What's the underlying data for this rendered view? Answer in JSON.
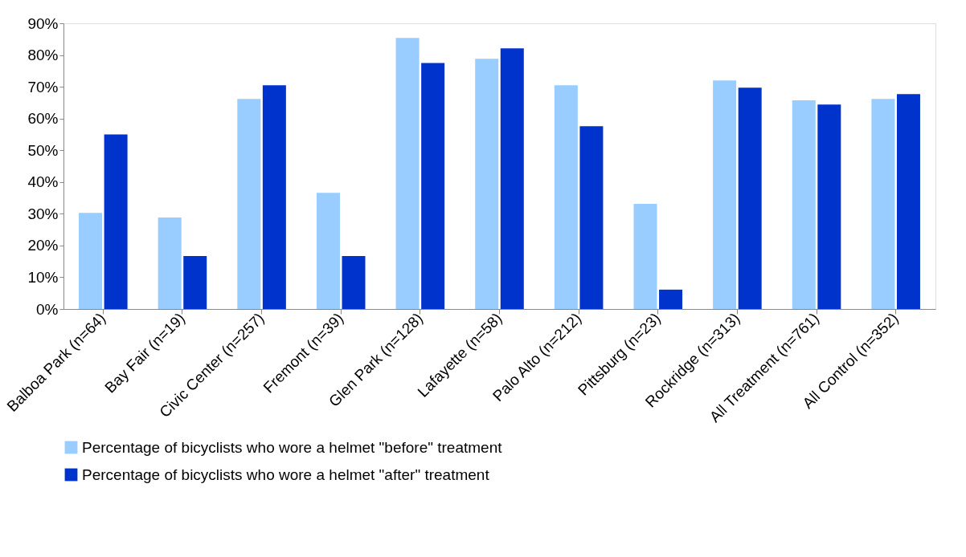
{
  "chart_data": {
    "type": "bar",
    "categories": [
      "Balboa Park (n=64)",
      "Bay Fair (n=19)",
      "Civic Center (n=257)",
      "Fremont (n=39)",
      "Glen Park (n=128)",
      "Lafayette (n=58)",
      "Palo Alto (n=212)",
      "Pittsburg (n=23)",
      "Rockridge (n=313)",
      "All Treatment (n=761)",
      "All Control (n=352)"
    ],
    "series": [
      {
        "name": "Percentage of bicyclists who wore a helmet \"before\" treatment",
        "color": "#99ccff",
        "values": [
          30.3,
          28.8,
          66.2,
          36.6,
          85.4,
          78.8,
          70.5,
          33.1,
          72.0,
          65.7,
          66.2
        ]
      },
      {
        "name": "Percentage of bicyclists who wore a helmet \"after\" treatment",
        "color": "#0033cc",
        "values": [
          55.0,
          16.7,
          70.5,
          16.7,
          77.5,
          82.1,
          57.6,
          6.1,
          69.7,
          64.4,
          67.7
        ]
      }
    ],
    "ylim": [
      0,
      90
    ],
    "yticks": [
      {
        "value": 0,
        "label": "0%"
      },
      {
        "value": 10,
        "label": "10%"
      },
      {
        "value": 20,
        "label": "20%"
      },
      {
        "value": 30,
        "label": "30%"
      },
      {
        "value": 40,
        "label": "40%"
      },
      {
        "value": 50,
        "label": "50%"
      },
      {
        "value": 60,
        "label": "60%"
      },
      {
        "value": 70,
        "label": "70%"
      },
      {
        "value": 80,
        "label": "80%"
      },
      {
        "value": 90,
        "label": "90%"
      }
    ],
    "grid": false,
    "legend": "bottom"
  }
}
